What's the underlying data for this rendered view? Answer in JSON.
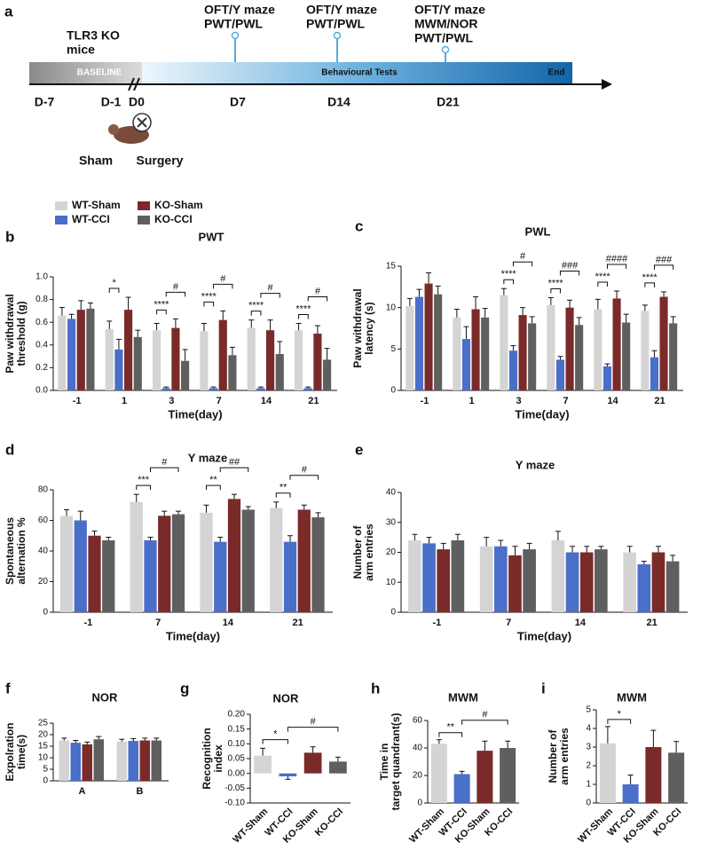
{
  "timeline": {
    "panel": "a",
    "title": [
      "TLR3 KO",
      "mice"
    ],
    "baseline": "BASELINE",
    "phase": "Behavioural Tests",
    "end": "End",
    "days": [
      "D-7",
      "D-1",
      "D0",
      "D7",
      "D14",
      "D21"
    ],
    "tests": [
      [
        "OFT/Y maze",
        "PWT/PWL"
      ],
      [
        "OFT/Y maze",
        "PWT/PWL"
      ],
      [
        "OFT/Y maze",
        "MWM/NOR",
        "PWT/PWL"
      ]
    ],
    "groups": [
      "Sham",
      "Surgery"
    ]
  },
  "chart_data": [
    {
      "panel": "b",
      "type": "grouped_bar",
      "title": "PWT",
      "ylabel": [
        "Paw withdrawal",
        "threshold (g)"
      ],
      "xlabel": "Time(day)",
      "categories": [
        "-1",
        "1",
        "3",
        "7",
        "14",
        "21"
      ],
      "ylim": [
        0,
        1
      ],
      "yticks": [
        {
          "value": 0,
          "label": "0.0"
        },
        0.2,
        0.4,
        0.6,
        0.8,
        {
          "value": 1,
          "label": "1.0"
        }
      ],
      "series": [
        {
          "name": "WT-Sham",
          "color": "#d4d4d4",
          "values": [
            0.66,
            0.54,
            0.53,
            0.52,
            0.55,
            0.53
          ],
          "errors": [
            0.07,
            0.07,
            0.06,
            0.07,
            0.07,
            0.06
          ]
        },
        {
          "name": "WT-CCI",
          "color": "#4a6fc9",
          "values": [
            0.63,
            0.36,
            0.02,
            0.02,
            0.02,
            0.02
          ],
          "errors": [
            0.04,
            0.09,
            0.01,
            0.01,
            0.01,
            0.01
          ]
        },
        {
          "name": "KO-Sham",
          "color": "#7b2a2a",
          "values": [
            0.71,
            0.71,
            0.55,
            0.62,
            0.53,
            0.5
          ],
          "errors": [
            0.08,
            0.11,
            0.08,
            0.08,
            0.09,
            0.07
          ]
        },
        {
          "name": "KO-CCI",
          "color": "#5f5f5f",
          "values": [
            0.72,
            0.47,
            0.26,
            0.31,
            0.32,
            0.27
          ],
          "errors": [
            0.05,
            0.06,
            0.1,
            0.07,
            0.11,
            0.1
          ]
        }
      ],
      "sig_cci": [
        null,
        "*",
        "****",
        "****",
        "****",
        "****"
      ],
      "sig_ko": [
        null,
        null,
        "#",
        "#",
        "#",
        "#"
      ]
    },
    {
      "panel": "c",
      "type": "grouped_bar",
      "title": "PWL",
      "ylabel": [
        "Paw withdrawal",
        "latency (s)"
      ],
      "xlabel": "Time(day)",
      "categories": [
        "-1",
        "1",
        "3",
        "7",
        "14",
        "21"
      ],
      "ylim": [
        0,
        15
      ],
      "yticks": [
        0,
        5,
        10,
        15
      ],
      "series": [
        {
          "color": "#d4d4d4",
          "values": [
            10.2,
            8.8,
            11.5,
            10.3,
            9.8,
            9.6
          ],
          "errors": [
            0.9,
            1.0,
            0.8,
            0.9,
            1.2,
            0.7
          ]
        },
        {
          "color": "#4a6fc9",
          "values": [
            11.3,
            6.2,
            4.8,
            3.7,
            2.9,
            4.0
          ],
          "errors": [
            0.9,
            1.5,
            0.6,
            0.4,
            0.3,
            0.8
          ]
        },
        {
          "color": "#7b2a2a",
          "values": [
            12.9,
            9.8,
            9.1,
            10.0,
            11.1,
            11.3
          ],
          "errors": [
            1.3,
            1.5,
            0.9,
            0.9,
            0.9,
            0.6
          ]
        },
        {
          "color": "#5f5f5f",
          "values": [
            11.6,
            8.8,
            8.1,
            7.9,
            8.2,
            8.1
          ],
          "errors": [
            1.0,
            1.1,
            0.8,
            0.9,
            1.0,
            0.8
          ]
        }
      ],
      "sig_cci": [
        null,
        null,
        "****",
        "****",
        "****",
        "****"
      ],
      "sig_ko": [
        null,
        null,
        "#",
        "###",
        "####",
        "###"
      ]
    },
    {
      "panel": "d",
      "type": "grouped_bar",
      "title": "Y maze",
      "ylabel": [
        "Spontaneous",
        "alternation %"
      ],
      "xlabel": "Time(day)",
      "categories": [
        "-1",
        "7",
        "14",
        "21"
      ],
      "ylim": [
        0,
        80
      ],
      "yticks": [
        0,
        20,
        40,
        60,
        80
      ],
      "series": [
        {
          "color": "#d4d4d4",
          "values": [
            63,
            72,
            65,
            68
          ],
          "errors": [
            4,
            5,
            5,
            4
          ]
        },
        {
          "color": "#4a6fc9",
          "values": [
            60,
            47,
            46,
            46
          ],
          "errors": [
            6,
            2,
            3,
            4
          ]
        },
        {
          "color": "#7b2a2a",
          "values": [
            50,
            63,
            74,
            67
          ],
          "errors": [
            3,
            3,
            3,
            3
          ]
        },
        {
          "color": "#5f5f5f",
          "values": [
            47,
            64,
            67,
            62
          ],
          "errors": [
            2,
            2,
            2,
            3
          ]
        }
      ],
      "sig_cci": [
        null,
        "***",
        "**",
        "**"
      ],
      "sig_ko": [
        null,
        "#",
        "##",
        "#"
      ]
    },
    {
      "panel": "e",
      "type": "grouped_bar",
      "title": "Y maze",
      "ylabel": [
        "Number of",
        "arm entries"
      ],
      "xlabel": "Time(day)",
      "categories": [
        "-1",
        "7",
        "14",
        "21"
      ],
      "ylim": [
        0,
        40
      ],
      "yticks": [
        0,
        10,
        20,
        30,
        40
      ],
      "series": [
        {
          "color": "#d4d4d4",
          "values": [
            24,
            22,
            24,
            20
          ],
          "errors": [
            2,
            3,
            3,
            2
          ]
        },
        {
          "color": "#4a6fc9",
          "values": [
            23,
            22,
            20,
            16
          ],
          "errors": [
            2,
            2,
            2,
            1
          ]
        },
        {
          "color": "#7b2a2a",
          "values": [
            21,
            19,
            20,
            20
          ],
          "errors": [
            2,
            3,
            2,
            2
          ]
        },
        {
          "color": "#5f5f5f",
          "values": [
            24,
            21,
            21,
            17
          ],
          "errors": [
            2,
            2,
            1,
            2
          ]
        }
      ]
    },
    {
      "panel": "f",
      "type": "grouped_bar",
      "title": "NOR",
      "ylabel": [
        "Expolration",
        "time(s)"
      ],
      "categories": [
        "A",
        "B"
      ],
      "ylim": [
        0,
        25
      ],
      "yticks": [
        0,
        5,
        10,
        15,
        20,
        25
      ],
      "series": [
        {
          "color": "#d4d4d4",
          "values": [
            17.5,
            17
          ],
          "errors": [
            1,
            1
          ]
        },
        {
          "color": "#4a6fc9",
          "values": [
            16.5,
            17.3
          ],
          "errors": [
            1,
            1
          ]
        },
        {
          "color": "#7b2a2a",
          "values": [
            15.8,
            17.5
          ],
          "errors": [
            1,
            1
          ]
        },
        {
          "color": "#5f5f5f",
          "values": [
            18,
            17.5
          ],
          "errors": [
            1.2,
            1
          ]
        }
      ]
    },
    {
      "panel": "g",
      "type": "bar",
      "title": "NOR",
      "ylabel": [
        "Recognition",
        "index"
      ],
      "categories": [
        "WT-Sham",
        "WT-CCI",
        "KO-Sham",
        "KO-CCI"
      ],
      "colors": [
        "#d4d4d4",
        "#4a6fc9",
        "#7b2a2a",
        "#5f5f5f"
      ],
      "values": [
        0.06,
        -0.01,
        0.07,
        0.04
      ],
      "errors": [
        0.025,
        0.01,
        0.02,
        0.015
      ],
      "ylim": [
        -0.1,
        0.2
      ],
      "yticks": [
        {
          "value": -0.1,
          "label": "-0.10"
        },
        {
          "value": -0.05,
          "label": "-0.05"
        },
        {
          "value": 0,
          "label": "0.00"
        },
        {
          "value": 0.05,
          "label": "0.05"
        },
        {
          "value": 0.1,
          "label": "0.10"
        },
        {
          "value": 0.15,
          "label": "0.15"
        },
        {
          "value": 0.2,
          "label": "0.20"
        }
      ],
      "sig_cci": "*",
      "sig_ko": "#"
    },
    {
      "panel": "h",
      "type": "bar",
      "title": "MWM",
      "ylabel": [
        "Time in",
        "target quandrant(s)"
      ],
      "categories": [
        "WT-Sham",
        "WT-CCI",
        "KO-Sham",
        "KO-CCI"
      ],
      "colors": [
        "#d4d4d4",
        "#4a6fc9",
        "#7b2a2a",
        "#5f5f5f"
      ],
      "values": [
        43,
        21,
        38,
        40
      ],
      "errors": [
        3,
        2,
        7,
        5
      ],
      "ylim": [
        0,
        60
      ],
      "yticks": [
        0,
        20,
        40,
        60
      ],
      "sig_cci": "**",
      "sig_ko": "#"
    },
    {
      "panel": "i",
      "type": "bar",
      "title": "MWM",
      "ylabel": [
        "Number of",
        "arm entries"
      ],
      "categories": [
        "WT-Sham",
        "WT-CCI",
        "KO-Sham",
        "KO-CCI"
      ],
      "colors": [
        "#d4d4d4",
        "#4a6fc9",
        "#7b2a2a",
        "#5f5f5f"
      ],
      "values": [
        3.2,
        1.0,
        3.0,
        2.7
      ],
      "errors": [
        0.9,
        0.5,
        0.9,
        0.6
      ],
      "ylim": [
        0,
        5
      ],
      "yticks": [
        0,
        1,
        2,
        3,
        4,
        5
      ],
      "sig_cci": "*"
    }
  ]
}
